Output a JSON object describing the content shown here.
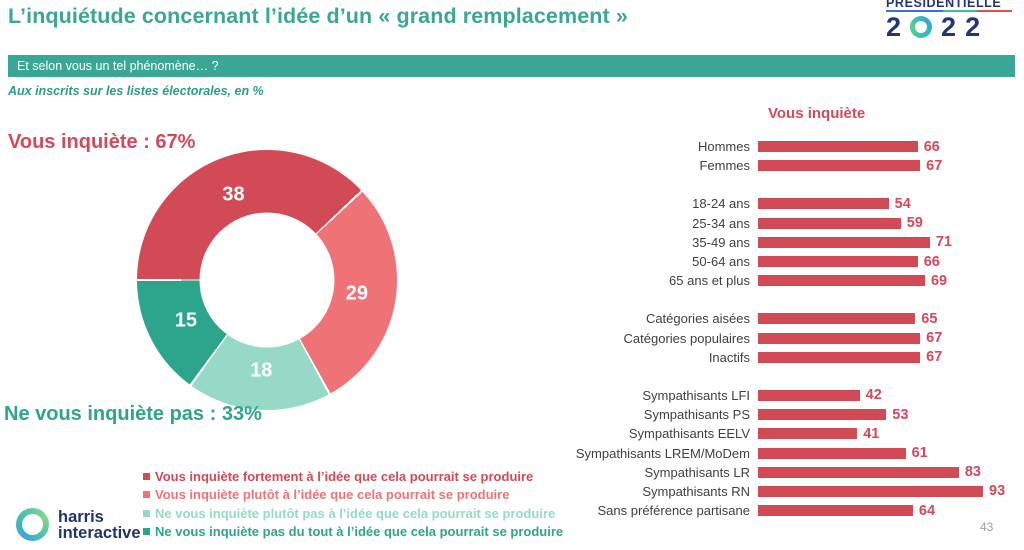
{
  "header": {
    "title": "L’inquiétude concernant l’idée d’un « grand remplacement »",
    "logo": {
      "line1": "PRÉSIDENTIELLE",
      "digits": [
        "2",
        "0",
        "2",
        "2"
      ],
      "underline_colors": [
        "#3a6fe0",
        "#3cbfa0",
        "#e84b4b"
      ]
    }
  },
  "question_banner": "Et selon vous un tel phénomène… ?",
  "subtitle": "Aux inscrits sur les listes électorales, en %",
  "colors": {
    "teal_brand": "#3aa795",
    "red_strong": "#d14a55",
    "red_soft": "#ef7277",
    "teal_soft": "#95d9c6",
    "teal_strong": "#2ca58c",
    "label_gray": "#3f3f3f",
    "navy": "#26337b"
  },
  "chart_data": [
    {
      "type": "pie",
      "style": "donut",
      "annotation_positive": "Vous inquiète : 67%",
      "annotation_negative": "Ne vous inquiète pas : 33%",
      "start_angle_deg_from_top": -90,
      "direction": "clockwise",
      "segments": [
        {
          "label": "Vous inquiète fortement à l’idée que cela pourrait se produire",
          "value": 38,
          "color": "#d14a55"
        },
        {
          "label": "Vous inquiète plutôt à l’idée que cela pourrait se produire",
          "value": 29,
          "color": "#ef7277"
        },
        {
          "label": "Ne vous inquiète plutôt pas à l’idée que cela pourrait se produire",
          "value": 18,
          "color": "#95d9c6"
        },
        {
          "label": "Ne vous inquiète pas du tout à l’idée que cela pourrait se produire",
          "value": 15,
          "color": "#2ca58c"
        }
      ]
    },
    {
      "type": "bar",
      "orientation": "horizontal",
      "title": "Vous inquiète",
      "xlim": [
        0,
        100
      ],
      "bar_color": "#d14a55",
      "groups": [
        {
          "rows": [
            {
              "label": "Hommes",
              "value": 66
            },
            {
              "label": "Femmes",
              "value": 67
            }
          ]
        },
        {
          "rows": [
            {
              "label": "18-24 ans",
              "value": 54
            },
            {
              "label": "25-34 ans",
              "value": 59
            },
            {
              "label": "35-49 ans",
              "value": 71
            },
            {
              "label": "50-64 ans",
              "value": 66
            },
            {
              "label": "65 ans et plus",
              "value": 69
            }
          ]
        },
        {
          "rows": [
            {
              "label": "Catégories aisées",
              "value": 65
            },
            {
              "label": "Catégories populaires",
              "value": 67
            },
            {
              "label": "Inactifs",
              "value": 67
            }
          ]
        },
        {
          "rows": [
            {
              "label": "Sympathisants LFI",
              "value": 42
            },
            {
              "label": "Sympathisants PS",
              "value": 53
            },
            {
              "label": "Sympathisants EELV",
              "value": 41
            },
            {
              "label": "Sympathisants LREM/MoDem",
              "value": 61
            },
            {
              "label": "Sympathisants LR",
              "value": 83
            },
            {
              "label": "Sympathisants RN",
              "value": 93
            },
            {
              "label": "Sans préférence partisane",
              "value": 64
            }
          ]
        }
      ]
    }
  ],
  "footer": {
    "brand_line1": "harris",
    "brand_line2": "interactive",
    "page_number": "43"
  }
}
